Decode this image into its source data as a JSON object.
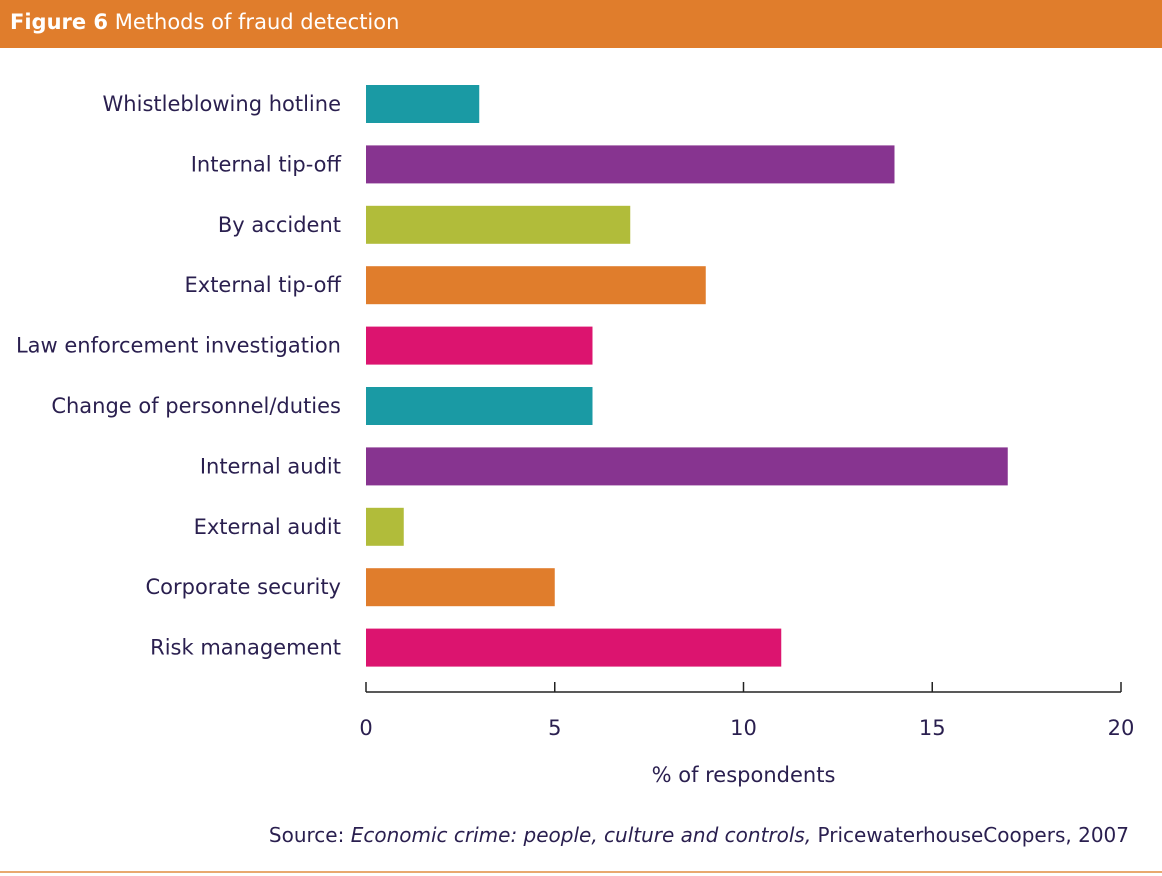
{
  "figure": {
    "number": "Figure 6",
    "title": "Methods of fraud detection"
  },
  "colors": {
    "header": "#e07d2c",
    "teal": "#1a9aa4",
    "purple": "#873490",
    "green": "#b1bc3a",
    "orange": "#e07d2c",
    "magenta": "#dc146f",
    "text": "#2a1f4f"
  },
  "chart_data": {
    "type": "bar",
    "orientation": "horizontal",
    "title": "Methods of fraud detection",
    "xlabel": "% of respondents",
    "ylabel": "",
    "xlim": [
      0,
      20
    ],
    "xticks": [
      0,
      5,
      10,
      15,
      20
    ],
    "grid": false,
    "legend": "none",
    "categories": [
      "Whistleblowing hotline",
      "Internal tip-off",
      "By accident",
      "External tip-off",
      "Law enforcement investigation",
      "Change of personnel/duties",
      "Internal audit",
      "External audit",
      "Corporate security",
      "Risk management"
    ],
    "values": [
      3,
      14,
      7,
      9,
      6,
      6,
      17,
      1,
      5,
      11
    ],
    "bar_colors": [
      "#1a9aa4",
      "#873490",
      "#b1bc3a",
      "#e07d2c",
      "#dc146f",
      "#1a9aa4",
      "#873490",
      "#b1bc3a",
      "#e07d2c",
      "#dc146f"
    ]
  },
  "source": {
    "prefix": "Source: ",
    "title": "Economic crime: people, culture and controls,",
    "suffix": " PricewaterhouseCoopers, 2007"
  }
}
